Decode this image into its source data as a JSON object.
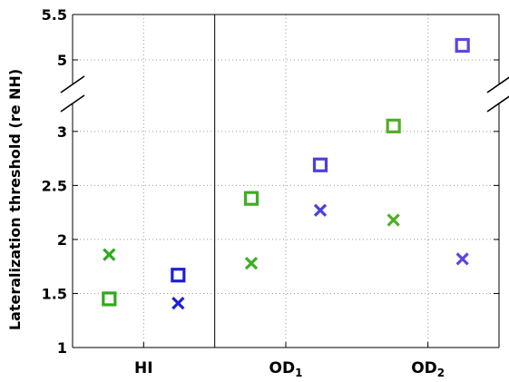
{
  "chart_data": {
    "type": "scatter",
    "ylabel": "Lateralization threshold (re NH)",
    "ylim": [
      1,
      5.5
    ],
    "axis_break": {
      "lower_segment": [
        1,
        3.2
      ],
      "upper_segment": [
        4.8,
        5.5
      ]
    },
    "groups": [
      {
        "label": "HI",
        "sub": ""
      },
      {
        "label": "OD",
        "sub": "1"
      },
      {
        "label": "OD",
        "sub": "2"
      }
    ],
    "yticks": [
      {
        "value": 1,
        "label": "1"
      },
      {
        "value": 1.5,
        "label": "1.5"
      },
      {
        "value": 2,
        "label": "2"
      },
      {
        "value": 2.5,
        "label": "2.5"
      },
      {
        "value": 3,
        "label": "3"
      },
      {
        "value": 5,
        "label": "5"
      },
      {
        "value": 5.5,
        "label": "5.5"
      }
    ],
    "points": [
      {
        "group": 0,
        "slot": 0,
        "marker": "x",
        "color": "#2eaa1e",
        "y": 1.86
      },
      {
        "group": 0,
        "slot": 0,
        "marker": "square",
        "color": "#2eaa1e",
        "y": 1.45
      },
      {
        "group": 0,
        "slot": 1,
        "marker": "x",
        "color": "#1f1fd6",
        "y": 1.41
      },
      {
        "group": 0,
        "slot": 1,
        "marker": "square",
        "color": "#1f1fd6",
        "y": 1.67
      },
      {
        "group": 1,
        "slot": 0,
        "marker": "x",
        "color": "#3fad23",
        "y": 1.78
      },
      {
        "group": 1,
        "slot": 0,
        "marker": "square",
        "color": "#3fad23",
        "y": 2.38
      },
      {
        "group": 1,
        "slot": 1,
        "marker": "x",
        "color": "#4a3fe0",
        "y": 2.27
      },
      {
        "group": 1,
        "slot": 1,
        "marker": "square",
        "color": "#4a3fe0",
        "y": 2.69
      },
      {
        "group": 2,
        "slot": 0,
        "marker": "x",
        "color": "#52ad26",
        "y": 2.18
      },
      {
        "group": 2,
        "slot": 0,
        "marker": "square",
        "color": "#52ad26",
        "y": 3.05
      },
      {
        "group": 2,
        "slot": 1,
        "marker": "x",
        "color": "#5a46e6",
        "y": 1.82
      },
      {
        "group": 2,
        "slot": 1,
        "marker": "square",
        "color": "#5a46e6",
        "y": 5.16
      }
    ],
    "grid": true
  }
}
